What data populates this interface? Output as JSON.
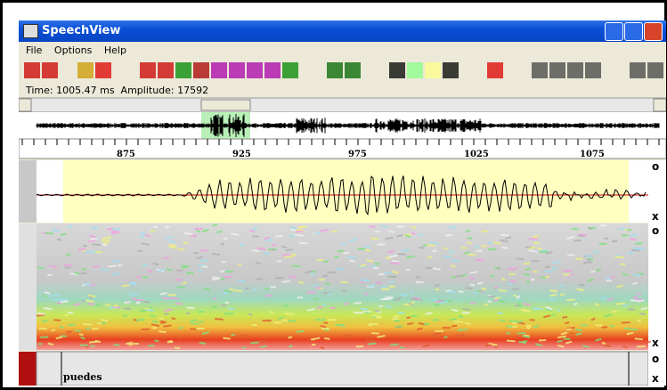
{
  "window": {
    "title": "SpeechView",
    "menu": [
      "File",
      "Options",
      "Help"
    ]
  },
  "status": "Time: 1005.47 ms  Amplitude: 17592",
  "ruler": {
    "labels": [
      "875",
      "925",
      "975",
      "1025",
      "1075"
    ]
  },
  "panel_buttons": [
    [
      "o",
      "x"
    ],
    [
      "o",
      "x"
    ],
    [
      "o",
      "x"
    ]
  ],
  "transcript": {
    "label": "puedes"
  }
}
